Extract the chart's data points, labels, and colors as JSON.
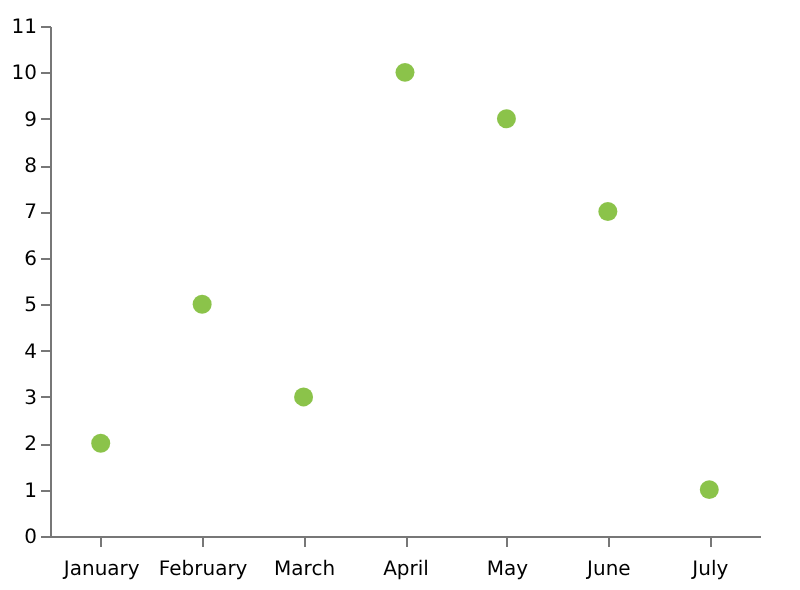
{
  "chart_data": {
    "type": "scatter",
    "categories": [
      "January",
      "February",
      "March",
      "April",
      "May",
      "June",
      "July"
    ],
    "series": [
      {
        "color": "#8bc34a",
        "values": [
          2,
          5,
          3,
          10,
          9,
          7,
          1
        ]
      }
    ],
    "ylim": [
      0,
      11
    ],
    "yticks": [
      0,
      1,
      2,
      3,
      4,
      5,
      6,
      7,
      8,
      9,
      10,
      11
    ],
    "grid": false
  }
}
